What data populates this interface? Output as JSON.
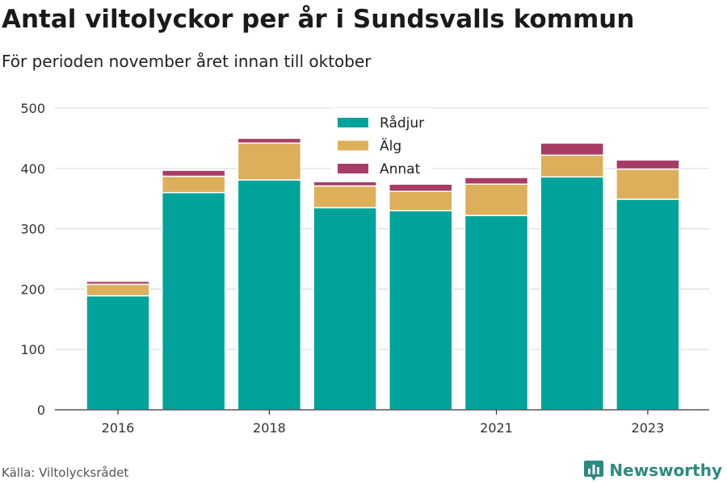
{
  "title": "Antal viltolyckor per år i Sundsvalls kommun",
  "subtitle": "För perioden november året innan till oktober",
  "source": "Källa: Viltolycksrådet",
  "brand": "Newsworthy",
  "colors": {
    "radjur": "#00a39a",
    "alg": "#ddaf5b",
    "annat": "#a63d66",
    "grid": "#dddddd",
    "brand": "#2d8a80"
  },
  "chart_data": {
    "type": "bar",
    "stacked": true,
    "x": [
      2016,
      2017,
      2018,
      2019,
      2020,
      2021,
      2022,
      2023
    ],
    "x_tick_labels": [
      "2016",
      "2018",
      "2021",
      "2023"
    ],
    "series": [
      {
        "name": "Rådjur",
        "color": "#00a39a",
        "values": [
          189,
          360,
          381,
          335,
          330,
          322,
          386,
          349
        ]
      },
      {
        "name": "Älg",
        "color": "#ddaf5b",
        "values": [
          19,
          27,
          61,
          36,
          32,
          52,
          36,
          50
        ]
      },
      {
        "name": "Annat",
        "color": "#a63d66",
        "values": [
          5,
          10,
          8,
          7,
          12,
          11,
          20,
          15
        ]
      }
    ],
    "ylim": [
      0,
      500
    ],
    "yticks": [
      0,
      100,
      200,
      300,
      400,
      500
    ],
    "grid": true,
    "legend_position": "top-center"
  }
}
